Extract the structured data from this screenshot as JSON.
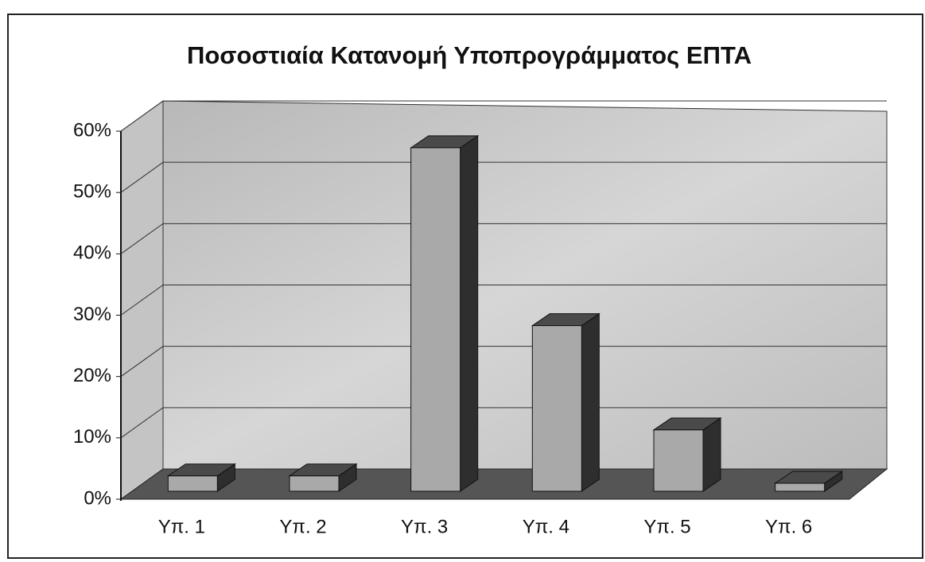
{
  "chart_data": {
    "type": "bar3d",
    "title": "Ποσοστιαία Κατανομή Υποπρογράμματος ΕΠΤΑ",
    "categories": [
      "Υπ. 1",
      "Υπ. 2",
      "Υπ. 3",
      "Υπ. 4",
      "Υπ. 5",
      "Υπ. 6"
    ],
    "values": [
      2.5,
      2.5,
      56,
      27,
      10,
      1.3
    ],
    "color": "#a9a9a9",
    "ylim": [
      0,
      60
    ],
    "yticks": [
      {
        "value": 0,
        "label": "0%"
      },
      {
        "value": 10,
        "label": "10%"
      },
      {
        "value": 20,
        "label": "20%"
      },
      {
        "value": 30,
        "label": "30%"
      },
      {
        "value": 40,
        "label": "40%"
      },
      {
        "value": 50,
        "label": "50%"
      },
      {
        "value": 60,
        "label": "60%"
      }
    ],
    "grid": true
  }
}
